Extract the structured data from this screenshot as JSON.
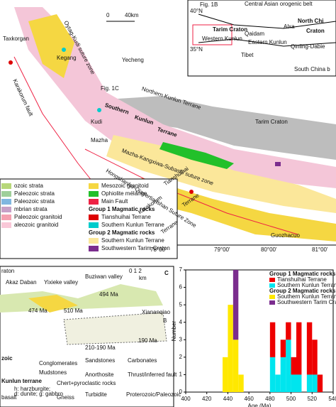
{
  "map": {
    "labels": [
      "Taxkorgan",
      "Kegang",
      "Yecheng",
      "Fig. 1C",
      "Kudi",
      "Mazha",
      "Southern",
      "Kunlun",
      "Terrane",
      "Northern Kunlun Terrane",
      "Tarim Craton",
      "Tianshuihai",
      "Terrane",
      "Karakorum",
      "Terrane",
      "Mazha-Kangxiwa-Subashi suture zone",
      "Hongshanhu-Qiaoertianshan Suture Zone",
      "Karakorum fault",
      "Oytag-Kudi suture zone",
      "Guozhacuo",
      "0",
      "40km",
      "78°00'",
      "79°00'",
      "80°00'",
      "81°00'"
    ]
  },
  "inset": {
    "labels": [
      "Fig. 1B",
      "Central Asian orogenic belt",
      "Tarim Craton",
      "North Chi",
      "Craton",
      "Alxa",
      "Qaidam",
      "Western Kunlun",
      "Eastern Kunlun",
      "Qinling-Dabie",
      "Tibet",
      "South China b",
      "40°N",
      "35°N"
    ]
  },
  "legend": {
    "items": [
      "ozoic strata",
      "Paleozoic strata",
      "Paleozoic strata",
      "mbrian strata",
      "Paleozoic granitoid",
      "aleozoic granitoid",
      "Mesozoic granitoid",
      "Ophiolite mélange",
      "Main Fault",
      "Group 1 Magmatic rocks",
      "Tianshuihai Terrane",
      "Southern Kunlun Terrane",
      "Group 2 Magmatic rocks",
      "Southern Kunlun Terrane",
      "Southwestern Tarim Craton"
    ]
  },
  "section": {
    "panel": "C",
    "labels": [
      "raton",
      "Akaz Daban",
      "Yixieke valley",
      "Buziwan valley",
      "Xiananqiao",
      "0 1 2",
      "km",
      "474 Ma",
      "510 Ma",
      "494 Ma",
      "210-190 Ma",
      "190 Ma",
      "B",
      "zoic",
      "Conglomerates",
      "Mudstones",
      "Kunlun terrane",
      "Sandstones",
      "Carbonates",
      "h: harzburgite;",
      "d: dunite; g: gabbro",
      "Anorthosite",
      "Thrust/inferred fault",
      "basalt",
      "Chert+pyroclastic rocks",
      "Turbidite",
      "Proterozoic/Paleozoic",
      "Gneiss"
    ]
  },
  "chart_data": {
    "type": "histogram",
    "x_label": "Age (Ma)",
    "y_label": "Number",
    "bins": [
      400,
      405,
      410,
      415,
      420,
      425,
      430,
      435,
      440,
      445,
      450,
      455,
      460,
      465,
      470,
      475,
      480,
      485,
      490,
      495,
      500,
      505,
      510,
      515,
      520,
      525,
      530,
      535,
      540
    ],
    "legend_headings": [
      "Group 1 Magmatic rocks",
      "Group 2 Magmatic rocks"
    ],
    "series": [
      {
        "name": "Southern Kunlun Terrane",
        "color": "#ffe800",
        "values": [
          0,
          0,
          0,
          0,
          0,
          0,
          0,
          2,
          5,
          3,
          1,
          0,
          0,
          0,
          0,
          0,
          0,
          0,
          0,
          0,
          0,
          0,
          0,
          0,
          0,
          0,
          0,
          0
        ]
      },
      {
        "name": "Southern Kunlun Terrane",
        "color": "#00e5ee",
        "values": [
          0,
          0,
          0,
          0,
          0,
          0,
          0,
          0,
          0,
          0,
          0,
          0,
          0,
          0,
          0,
          0,
          2,
          1,
          2,
          3,
          1,
          1,
          0,
          1,
          1,
          0,
          0,
          0
        ]
      },
      {
        "name": "Tianshuihai Terrane",
        "color": "#ee0000",
        "values": [
          0,
          0,
          0,
          0,
          0,
          0,
          0,
          0,
          0,
          0,
          0,
          0,
          0,
          0,
          0,
          0,
          2,
          0,
          1,
          1,
          1,
          3,
          0,
          3,
          2,
          1,
          0,
          0
        ]
      },
      {
        "name": "Southwestern Tarim Craton",
        "color": "#7b2d8e",
        "values": [
          0,
          0,
          0,
          0,
          0,
          0,
          0,
          0,
          0,
          4,
          0,
          0,
          0,
          0,
          0,
          0,
          0,
          0,
          0,
          0,
          0,
          0,
          0,
          0,
          0,
          0,
          0,
          0
        ]
      }
    ],
    "xlim": [
      400,
      540
    ],
    "xticks": [
      400,
      420,
      440,
      460,
      480,
      500,
      520,
      540
    ],
    "ylim": [
      0,
      7
    ],
    "yticks": [
      0,
      1,
      2,
      3,
      4,
      5,
      6,
      7
    ]
  }
}
